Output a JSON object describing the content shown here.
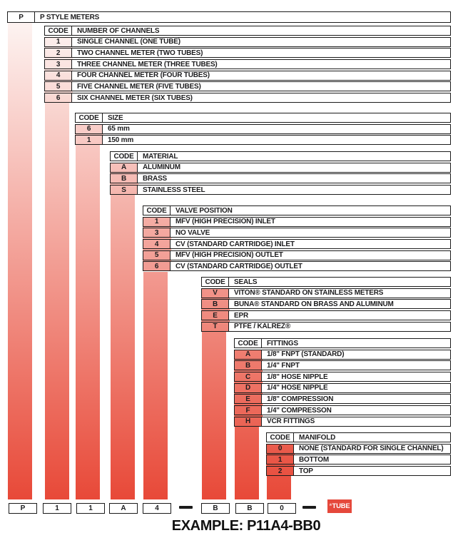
{
  "colors": {
    "accent_red": "#e84938",
    "badge_red": "#e5483b"
  },
  "root_table": {
    "code": "P",
    "label": "P STYLE METERS"
  },
  "tables": [
    {
      "code_header": "CODE",
      "title": "NUMBER OF CHANNELS",
      "rows": [
        {
          "code": "1",
          "label": "SINGLE CHANNEL (ONE TUBE)"
        },
        {
          "code": "2",
          "label": "TWO CHANNEL METER (TWO TUBES)"
        },
        {
          "code": "3",
          "label": "THREE CHANNEL METER (THREE TUBES)"
        },
        {
          "code": "4",
          "label": "FOUR CHANNEL METER (FOUR TUBES)"
        },
        {
          "code": "5",
          "label": "FIVE CHANNEL METER (FIVE TUBES)"
        },
        {
          "code": "6",
          "label": "SIX CHANNEL METER (SIX TUBES)"
        }
      ]
    },
    {
      "code_header": "CODE",
      "title": "SIZE",
      "rows": [
        {
          "code": "6",
          "label": "65 mm"
        },
        {
          "code": "1",
          "label": "150 mm"
        }
      ]
    },
    {
      "code_header": "CODE",
      "title": "MATERIAL",
      "rows": [
        {
          "code": "A",
          "label": "ALUMINUM"
        },
        {
          "code": "B",
          "label": "BRASS"
        },
        {
          "code": "S",
          "label": "STAINLESS STEEL"
        }
      ]
    },
    {
      "code_header": "CODE",
      "title": "VALVE POSITION",
      "rows": [
        {
          "code": "1",
          "label": "MFV (HIGH PRECISION) INLET"
        },
        {
          "code": "3",
          "label": "NO VALVE"
        },
        {
          "code": "4",
          "label": "CV (STANDARD CARTRIDGE) INLET"
        },
        {
          "code": "5",
          "label": "MFV (HIGH PRECISION) OUTLET"
        },
        {
          "code": "6",
          "label": "CV (STANDARD CARTRIDGE) OUTLET"
        }
      ]
    },
    {
      "code_header": "CODE",
      "title": "SEALS",
      "rows": [
        {
          "code": "V",
          "label": "VITON® STANDARD ON STAINLESS METERS"
        },
        {
          "code": "B",
          "label": "BUNA® STANDARD ON BRASS AND ALUMINUM"
        },
        {
          "code": "E",
          "label": "EPR"
        },
        {
          "code": "T",
          "label": "PTFE / KALREZ®"
        }
      ]
    },
    {
      "code_header": "CODE",
      "title": "FITTINGS",
      "rows": [
        {
          "code": "A",
          "label": "1/8\" FNPT (STANDARD)"
        },
        {
          "code": "B",
          "label": "1/4\" FNPT"
        },
        {
          "code": "C",
          "label": "1/8\" HOSE NIPPLE"
        },
        {
          "code": "D",
          "label": "1/4\" HOSE NIPPLE"
        },
        {
          "code": "E",
          "label": "1/8\" COMPRESSION"
        },
        {
          "code": "F",
          "label": "1/4\" COMPRESSON"
        },
        {
          "code": "H",
          "label": "VCR FITTINGS"
        }
      ]
    },
    {
      "code_header": "CODE",
      "title": "MANIFOLD",
      "rows": [
        {
          "code": "0",
          "label": "NONE (STANDARD FOR SINGLE CHANNEL)"
        },
        {
          "code": "1",
          "label": "BOTTOM"
        },
        {
          "code": "2",
          "label": "TOP"
        }
      ]
    }
  ],
  "example": {
    "segments": [
      "P",
      "1",
      "1",
      "A",
      "4",
      "B",
      "B",
      "0"
    ],
    "tube_note": {
      "star": "*",
      "label": "TUBE"
    },
    "caption": "EXAMPLE: P11A4-BB0"
  }
}
